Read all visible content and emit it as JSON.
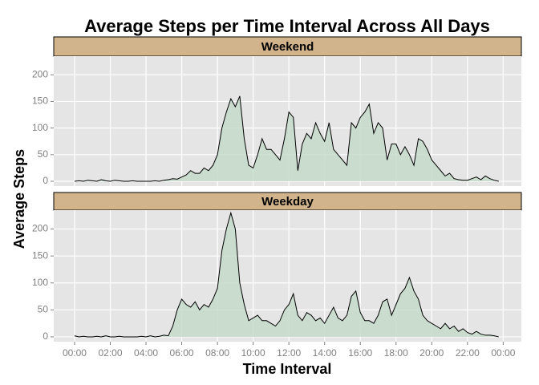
{
  "chart_data": {
    "type": "area",
    "title": "Average Steps per Time Interval Across All Days",
    "x_label": "Time Interval",
    "y_label": "Average Steps",
    "x": [
      0,
      15,
      30,
      45,
      60,
      75,
      90,
      105,
      120,
      135,
      150,
      165,
      180,
      195,
      210,
      225,
      240,
      255,
      270,
      285,
      300,
      315,
      330,
      345,
      360,
      375,
      390,
      405,
      420,
      435,
      450,
      465,
      480,
      495,
      510,
      525,
      540,
      555,
      570,
      585,
      600,
      615,
      630,
      645,
      660,
      675,
      690,
      705,
      720,
      735,
      750,
      765,
      780,
      795,
      810,
      825,
      840,
      855,
      870,
      885,
      900,
      915,
      930,
      945,
      960,
      975,
      990,
      1005,
      1020,
      1035,
      1050,
      1065,
      1080,
      1095,
      1110,
      1125,
      1140,
      1155,
      1170,
      1185,
      1200,
      1215,
      1230,
      1245,
      1260,
      1275,
      1290,
      1305,
      1320,
      1335,
      1350,
      1365,
      1380,
      1395,
      1410,
      1425
    ],
    "xlim": [
      -70,
      1501
    ],
    "xticks": [
      {
        "value": 0,
        "label": "00:00"
      },
      {
        "value": 120,
        "label": "02:00"
      },
      {
        "value": 240,
        "label": "04:00"
      },
      {
        "value": 360,
        "label": "06:00"
      },
      {
        "value": 480,
        "label": "08:00"
      },
      {
        "value": 600,
        "label": "10:00"
      },
      {
        "value": 720,
        "label": "12:00"
      },
      {
        "value": 840,
        "label": "14:00"
      },
      {
        "value": 960,
        "label": "16:00"
      },
      {
        "value": 1080,
        "label": "18:00"
      },
      {
        "value": 1200,
        "label": "20:00"
      },
      {
        "value": 1320,
        "label": "22:00"
      },
      {
        "value": 1440,
        "label": "00:00"
      }
    ],
    "ylim": [
      -9,
      235
    ],
    "yticks": [
      0,
      50,
      100,
      150,
      200
    ],
    "grid": true,
    "line_color": "#000000",
    "strip_color": "#d2b48c",
    "series": [
      {
        "name": "Weekend",
        "color": "#c2d9c8",
        "values": [
          0,
          1,
          0,
          2,
          1,
          0,
          3,
          1,
          0,
          2,
          1,
          0,
          0,
          1,
          0,
          0,
          0,
          0,
          1,
          0,
          2,
          3,
          5,
          4,
          8,
          12,
          20,
          15,
          15,
          25,
          20,
          30,
          50,
          100,
          130,
          155,
          140,
          160,
          80,
          30,
          25,
          50,
          80,
          60,
          60,
          50,
          40,
          80,
          130,
          120,
          20,
          70,
          90,
          80,
          110,
          90,
          75,
          110,
          60,
          50,
          40,
          30,
          110,
          100,
          120,
          130,
          145,
          90,
          110,
          100,
          40,
          70,
          70,
          50,
          65,
          50,
          30,
          80,
          75,
          60,
          40,
          30,
          20,
          10,
          15,
          5,
          3,
          2,
          2,
          5,
          8,
          3,
          10,
          5,
          2,
          0
        ]
      },
      {
        "name": "Weekday",
        "color": "#c2d9c8",
        "values": [
          2,
          0,
          1,
          0,
          0,
          1,
          0,
          2,
          0,
          0,
          1,
          0,
          0,
          0,
          0,
          1,
          0,
          2,
          0,
          1,
          3,
          2,
          20,
          50,
          70,
          60,
          55,
          65,
          50,
          60,
          55,
          70,
          90,
          160,
          200,
          230,
          200,
          100,
          60,
          30,
          35,
          40,
          30,
          30,
          25,
          20,
          30,
          50,
          60,
          80,
          40,
          30,
          45,
          40,
          30,
          35,
          25,
          40,
          55,
          35,
          30,
          40,
          75,
          85,
          45,
          30,
          30,
          25,
          40,
          65,
          70,
          40,
          60,
          80,
          90,
          110,
          85,
          70,
          40,
          30,
          25,
          20,
          15,
          25,
          15,
          20,
          10,
          15,
          8,
          5,
          10,
          5,
          3,
          3,
          2,
          0
        ]
      }
    ]
  }
}
